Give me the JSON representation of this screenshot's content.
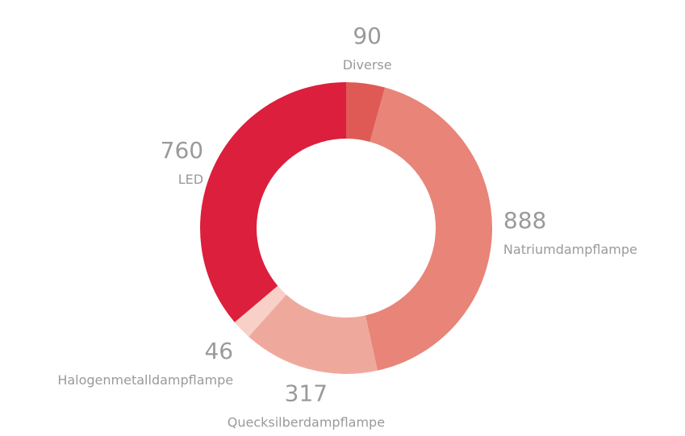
{
  "chart_data": {
    "type": "donut",
    "categories": [
      "Diverse",
      "Natriumdampflampe",
      "Quecksilberdampflampe",
      "Halogenmetalldampflampe",
      "LED"
    ],
    "values": [
      90,
      888,
      317,
      46,
      760
    ],
    "colors": [
      "#e05a55",
      "#e88478",
      "#efa99c",
      "#f8d0c8",
      "#dc1f3c"
    ]
  }
}
